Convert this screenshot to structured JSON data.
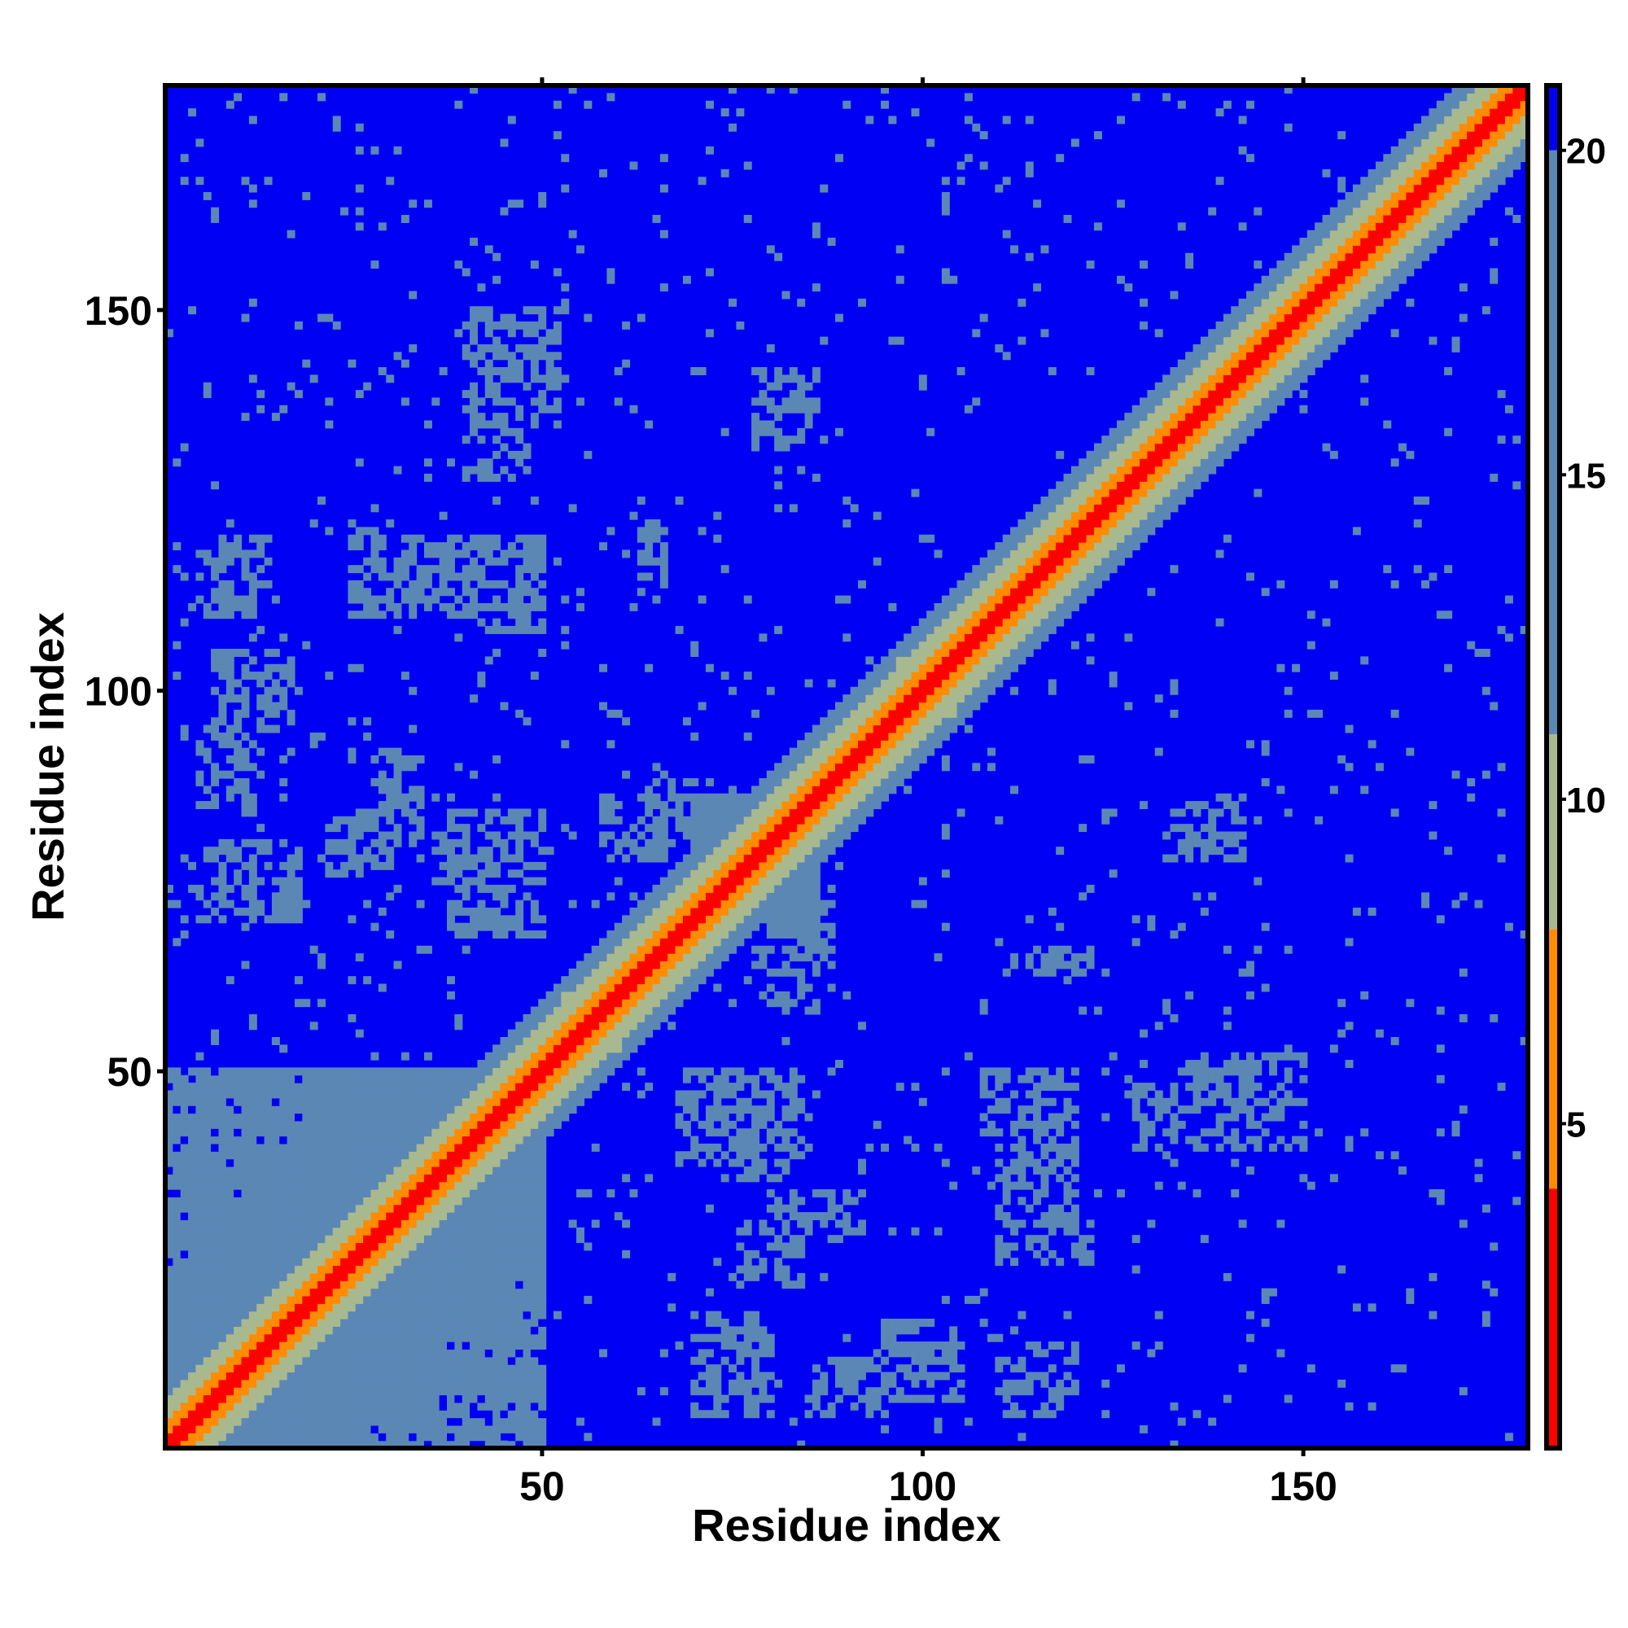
{
  "chart_data": {
    "type": "heatmap",
    "title": "",
    "xlabel": "Residue index",
    "ylabel": "Residue index",
    "xlim": [
      1,
      179
    ],
    "ylim": [
      1,
      179
    ],
    "n_residues": 179,
    "x_ticks": [
      50,
      100,
      150
    ],
    "y_ticks": [
      50,
      100,
      150
    ],
    "colorbar": {
      "range": [
        0,
        21
      ],
      "ticks": [
        5,
        10,
        15,
        20
      ],
      "placement": "right",
      "bands": [
        {
          "max": 4,
          "color": "#ff0000"
        },
        {
          "max": 8,
          "color": "#ff8c00"
        },
        {
          "max": 11,
          "color": "#a9b98f"
        },
        {
          "max": 20,
          "color": "#5b87b5"
        },
        {
          "max": 21,
          "color": "#0000f5"
        }
      ]
    },
    "features": {
      "diagonal_width": 3,
      "domain_blocks": [
        {
          "range": [
            1,
            50
          ],
          "value": 13
        },
        {
          "range": [
            70,
            86
          ],
          "value": 12
        },
        {
          "range": [
            97,
            104
          ],
          "value": 9
        },
        {
          "range": [
            141,
            146
          ],
          "value": 8
        },
        {
          "range": [
            53,
            60
          ],
          "value": 8
        },
        {
          "range": [
            63,
            68
          ],
          "value": 8
        }
      ],
      "off_diagonal_contacts": [
        {
          "x": [
            8,
            20
          ],
          "y": [
            1,
            50
          ],
          "value": 16
        },
        {
          "x": [
            7,
            17
          ],
          "y": [
            95,
            105
          ],
          "value": 16
        },
        {
          "x": [
            8,
            14
          ],
          "y": [
            114,
            120
          ],
          "value": 16
        },
        {
          "x": [
            28,
            34
          ],
          "y": [
            80,
            92
          ],
          "value": 17
        },
        {
          "x": [
            36,
            48
          ],
          "y": [
            75,
            82
          ],
          "value": 17
        },
        {
          "x": [
            30,
            50
          ],
          "y": [
            110,
            120
          ],
          "value": 17
        },
        {
          "x": [
            40,
            52
          ],
          "y": [
            135,
            150
          ],
          "value": 18
        },
        {
          "x": [
            78,
            86
          ],
          "y": [
            135,
            142
          ],
          "value": 18
        },
        {
          "x": [
            70,
            80
          ],
          "y": [
            5,
            18
          ],
          "value": 17
        },
        {
          "x": [
            85,
            95
          ],
          "y": [
            5,
            12
          ],
          "value": 16
        },
        {
          "x": [
            110,
            118
          ],
          "y": [
            5,
            12
          ],
          "value": 16
        },
        {
          "x": [
            110,
            122
          ],
          "y": [
            25,
            30
          ],
          "value": 17
        },
        {
          "x": [
            108,
            118
          ],
          "y": [
            42,
            50
          ],
          "value": 17
        },
        {
          "x": [
            128,
            142
          ],
          "y": [
            40,
            48
          ],
          "value": 18
        },
        {
          "x": [
            132,
            142
          ],
          "y": [
            78,
            84
          ],
          "value": 18
        },
        {
          "x": [
            112,
            122
          ],
          "y": [
            63,
            66
          ],
          "value": 18
        },
        {
          "x": [
            68,
            84
          ],
          "y": [
            38,
            50
          ],
          "value": 17
        },
        {
          "x": [
            76,
            84
          ],
          "y": [
            22,
            30
          ],
          "value": 17
        },
        {
          "x": [
            58,
            66
          ],
          "y": [
            78,
            86
          ],
          "value": 17
        },
        {
          "x": [
            80,
            88
          ],
          "y": [
            64,
            72
          ],
          "value": 17
        }
      ]
    }
  }
}
